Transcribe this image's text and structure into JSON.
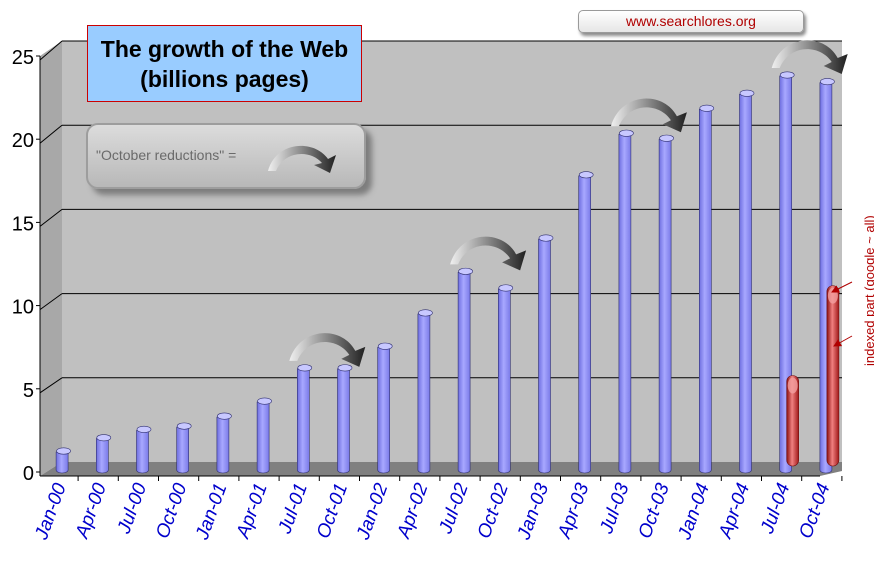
{
  "chart_data": {
    "type": "bar",
    "title_line1": "The growth of the Web",
    "title_line2": "(billions pages)",
    "categories": [
      "Jan-00",
      "Apr-00",
      "Jul-00",
      "Oct-00",
      "Jan-01",
      "Apr-01",
      "Jul-01",
      "Oct-01",
      "Jan-02",
      "Apr-02",
      "Jul-02",
      "Oct-02",
      "Jan-03",
      "Apr-03",
      "Jul-03",
      "Oct-03",
      "Jan-04",
      "Apr-04",
      "Jul-04",
      "Oct-04"
    ],
    "series": [
      {
        "values": [
          1.2,
          2.0,
          2.5,
          2.7,
          3.3,
          4.2,
          6.2,
          6.2,
          7.5,
          9.5,
          12.0,
          11.0,
          14.0,
          17.8,
          20.3,
          20.0,
          21.8,
          22.7,
          23.8,
          23.4
        ],
        "color": "#9999ff"
      },
      {
        "values": [
          null,
          null,
          null,
          null,
          null,
          null,
          null,
          null,
          null,
          null,
          null,
          null,
          null,
          null,
          null,
          null,
          null,
          null,
          5.8,
          11.2
        ],
        "color": "#cc3333"
      }
    ],
    "y_ticks": [
      "0",
      "5",
      "10",
      "15",
      "20",
      "25"
    ],
    "ylim": [
      0,
      25
    ],
    "grid": true,
    "october_arrows_after": [
      "Jul-01",
      "Jul-02",
      "Jul-03",
      "Jul-04"
    ]
  },
  "watermark": "www.searchlores.org",
  "legend": {
    "text": "\"October reductions\" =",
    "icon": "curved-arrow-icon"
  },
  "side_note": "indexed part (google ~ all)",
  "colors": {
    "bar": "#9999ff",
    "indexed": "#cc3333",
    "wall": "#c0c0c0",
    "floor": "#808080",
    "axis_label": "#0000cc"
  }
}
